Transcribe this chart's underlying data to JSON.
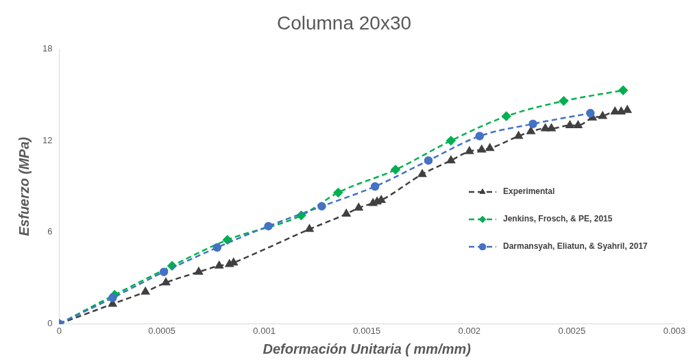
{
  "chart_data": {
    "type": "line",
    "title": "Columna 20x30",
    "xlabel": "Deformación Unitaria ( mm/mm)",
    "ylabel": "Esfuerzo (MPa)",
    "xlim": [
      0,
      0.003
    ],
    "xticks": [
      0,
      0.0005,
      0.001,
      0.0015,
      0.002,
      0.0025,
      0.003
    ],
    "ylim": [
      0,
      18
    ],
    "yticks": [
      0,
      6,
      12,
      18
    ],
    "grid": false,
    "legend": "right",
    "line_style": "dashed",
    "series": [
      {
        "name": "Experimental",
        "color": "#404040",
        "marker": "triangle",
        "x": [
          0,
          0.00026,
          0.00042,
          0.00052,
          0.00068,
          0.00078,
          0.00083,
          0.00085,
          0.00122,
          0.0014,
          0.00146,
          0.00153,
          0.00155,
          0.00157,
          0.00177,
          0.00191,
          0.002,
          0.00206,
          0.0021,
          0.00224,
          0.0023,
          0.00237,
          0.0024,
          0.00249,
          0.00253,
          0.0026,
          0.00265,
          0.00271,
          0.00274,
          0.00277
        ],
        "values": [
          0,
          1.3,
          2.1,
          2.7,
          3.4,
          3.8,
          3.9,
          4,
          6.2,
          7.2,
          7.6,
          7.9,
          8,
          8.1,
          9.8,
          10.7,
          11.3,
          11.4,
          11.5,
          12.3,
          12.6,
          12.8,
          12.8,
          13,
          13,
          13.5,
          13.6,
          13.9,
          13.9,
          14
        ]
      },
      {
        "name": "Jenkins, Frosch, & PE, 2015",
        "color": "#00b050",
        "marker": "diamond",
        "x": [
          0,
          0.00027,
          0.00055,
          0.00082,
          0.00118,
          0.00136,
          0.00164,
          0.00191,
          0.00218,
          0.00246,
          0.00275
        ],
        "values": [
          0,
          1.9,
          3.8,
          5.5,
          7.1,
          8.6,
          10.1,
          12,
          13.6,
          14.6,
          15.3
        ]
      },
      {
        "name": "Darmansyah, Eliatun, & Syahril, 2017",
        "color": "#4472c4",
        "marker": "circle",
        "x": [
          0,
          0.00026,
          0.00051,
          0.00077,
          0.00102,
          0.00128,
          0.00154,
          0.0018,
          0.00205,
          0.00231,
          0.00259
        ],
        "values": [
          0,
          1.7,
          3.4,
          5,
          6.4,
          7.7,
          9,
          10.7,
          12.3,
          13.1,
          13.8
        ]
      }
    ]
  }
}
